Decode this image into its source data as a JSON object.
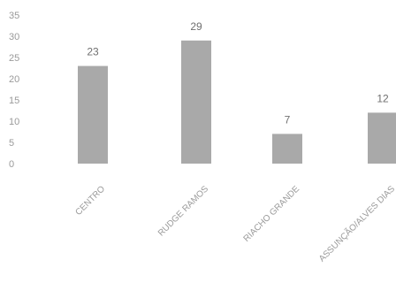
{
  "chart_data": {
    "type": "bar",
    "categories": [
      "CENTRO",
      "RUDGE RAMOS",
      "RIACHO GRANDE",
      "ASSUNÇÃO/ALVES DIAS"
    ],
    "values": [
      23,
      29,
      7,
      12
    ],
    "y_ticks": [
      "0",
      "5",
      "10",
      "15",
      "20",
      "25",
      "30",
      "35"
    ],
    "ylim": [
      0,
      35
    ],
    "grid": false,
    "legend": "none",
    "bar_color": "#a9a9a9"
  }
}
